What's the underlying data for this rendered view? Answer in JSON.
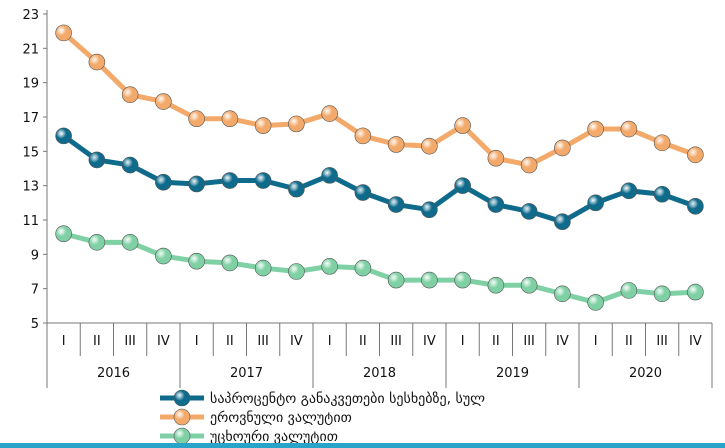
{
  "chart_data": {
    "type": "line",
    "ylim": [
      5,
      23
    ],
    "yticks": [
      5,
      7,
      9,
      11,
      13,
      15,
      17,
      19,
      21,
      23
    ],
    "quarters": [
      "I",
      "II",
      "III",
      "IV",
      "I",
      "II",
      "III",
      "IV",
      "I",
      "II",
      "III",
      "IV",
      "I",
      "II",
      "III",
      "IV",
      "I",
      "II",
      "III",
      "IV"
    ],
    "years": [
      "2016",
      "2017",
      "2018",
      "2019",
      "2020"
    ],
    "series": [
      {
        "name": "საპროცენტო განაკვეთები სესხებზე, სულ",
        "color": "#0e6b8c",
        "values": [
          15.9,
          14.5,
          14.2,
          13.2,
          13.1,
          13.3,
          13.3,
          12.8,
          13.6,
          12.6,
          11.9,
          11.6,
          13.0,
          11.9,
          11.5,
          10.9,
          12.0,
          12.7,
          12.5,
          11.8
        ]
      },
      {
        "name": "ეროვნული ვალუტით",
        "color": "#f2a96a",
        "values": [
          21.9,
          20.2,
          18.3,
          17.9,
          16.9,
          16.9,
          16.5,
          16.6,
          17.2,
          15.9,
          15.4,
          15.3,
          16.5,
          14.6,
          14.2,
          15.2,
          16.3,
          16.3,
          15.5,
          14.8
        ]
      },
      {
        "name": "უცხოური ვალუტით",
        "color": "#7fd0a4",
        "values": [
          10.2,
          9.7,
          9.7,
          8.9,
          8.6,
          8.5,
          8.2,
          8.0,
          8.3,
          8.2,
          7.5,
          7.5,
          7.5,
          7.2,
          7.2,
          6.7,
          6.2,
          6.9,
          6.7,
          6.8
        ]
      }
    ]
  }
}
